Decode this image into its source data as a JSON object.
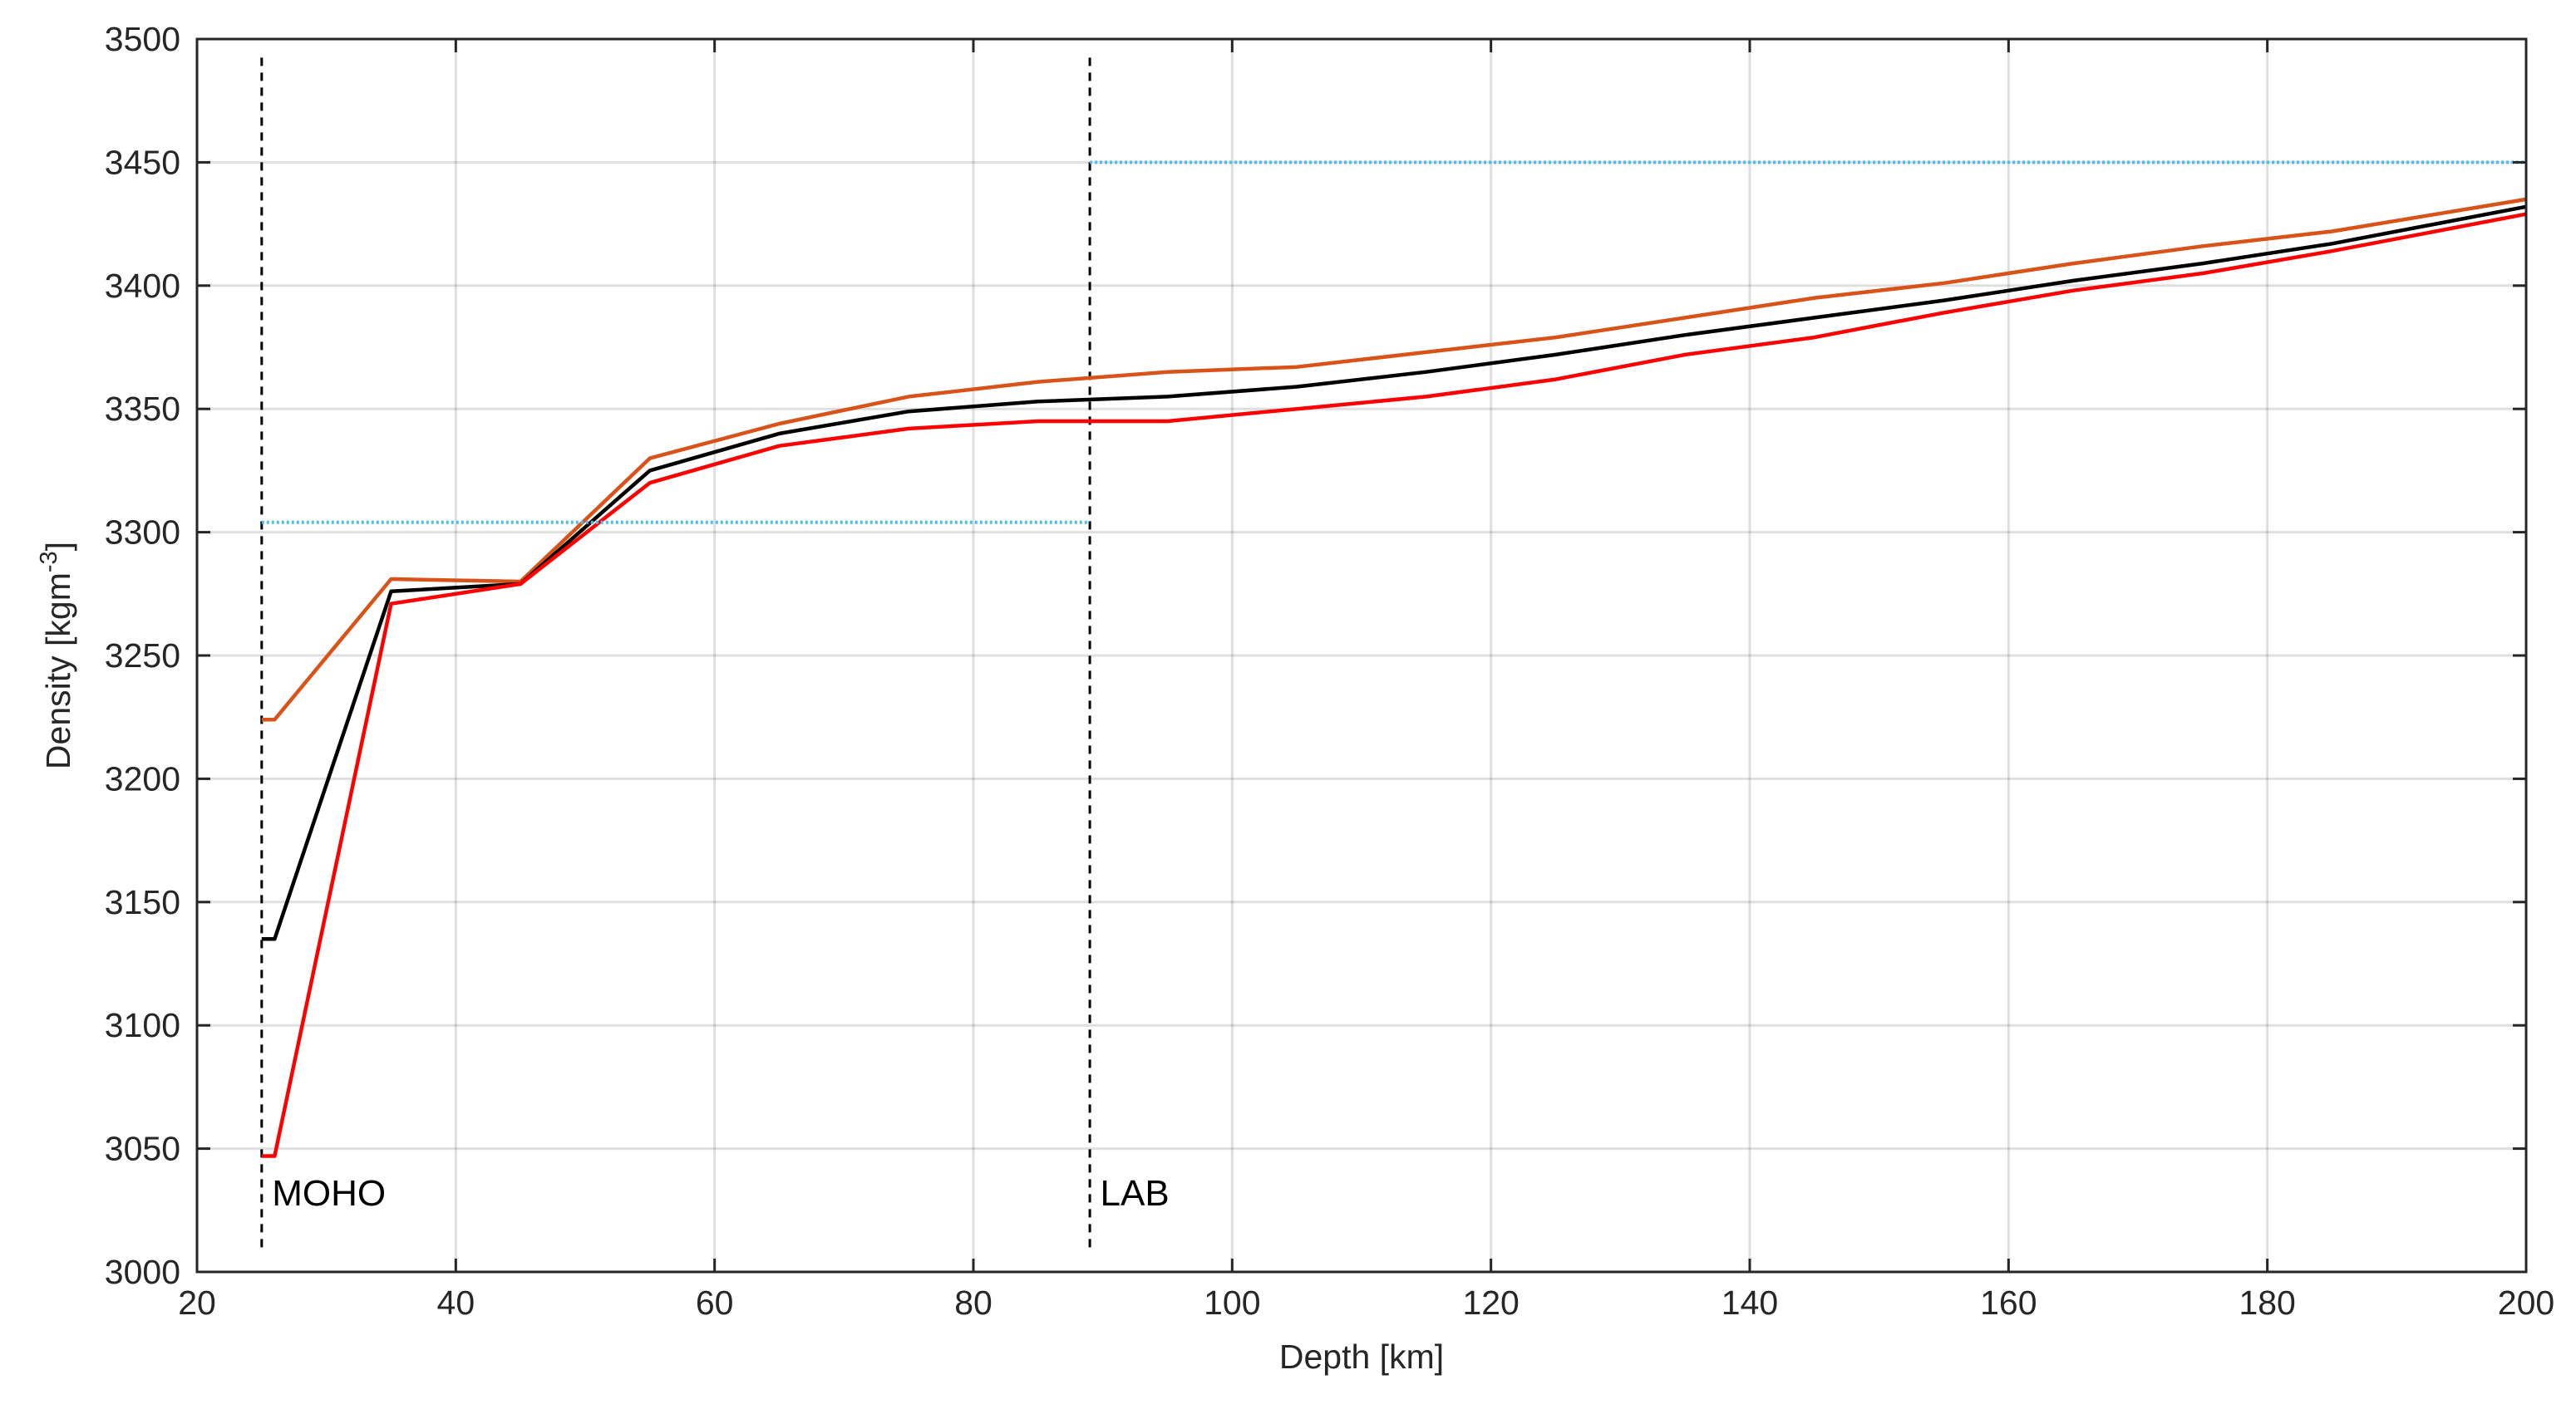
{
  "chart_data": {
    "type": "line",
    "xlabel": "Depth [km]",
    "ylabel_main": "Density [kgm",
    "ylabel_sup": "-3",
    "ylabel_tail": "]",
    "xlim": [
      20,
      200
    ],
    "ylim": [
      3000,
      3500
    ],
    "xticks": [
      20,
      40,
      60,
      80,
      100,
      120,
      140,
      160,
      180,
      200
    ],
    "yticks": [
      3000,
      3050,
      3100,
      3150,
      3200,
      3250,
      3300,
      3350,
      3400,
      3450,
      3500
    ],
    "grid": true,
    "series": [
      {
        "color": "#D95319",
        "style": "solid",
        "x": [
          25,
          26,
          35,
          45,
          55,
          65,
          75,
          85,
          95,
          105,
          115,
          125,
          135,
          145,
          155,
          165,
          175,
          185,
          200
        ],
        "y": [
          3224,
          3224,
          3281,
          3280,
          3330,
          3344,
          3355,
          3361,
          3365,
          3367,
          3373,
          3379,
          3387,
          3395,
          3401,
          3409,
          3416,
          3422,
          3435
        ]
      },
      {
        "color": "#000000",
        "style": "solid",
        "x": [
          25,
          26,
          35,
          45,
          55,
          65,
          75,
          85,
          95,
          105,
          115,
          125,
          135,
          145,
          155,
          165,
          175,
          185,
          200
        ],
        "y": [
          3135,
          3135,
          3276,
          3279,
          3325,
          3340,
          3349,
          3353,
          3355,
          3359,
          3365,
          3372,
          3380,
          3387,
          3394,
          3402,
          3409,
          3417,
          3432
        ]
      },
      {
        "color": "#FF0000",
        "style": "solid",
        "x": [
          25,
          26,
          35,
          45,
          55,
          65,
          75,
          85,
          95,
          105,
          115,
          125,
          135,
          145,
          155,
          165,
          175,
          185,
          200
        ],
        "y": [
          3047,
          3047,
          3271,
          3279,
          3320,
          3335,
          3342,
          3345,
          3345,
          3350,
          3355,
          3362,
          3372,
          3379,
          3389,
          3398,
          3405,
          3414,
          3429
        ]
      },
      {
        "color": "#4DBEEE",
        "style": "dotted",
        "x": [
          25,
          89
        ],
        "y": [
          3304,
          3304
        ]
      },
      {
        "color": "#4DBEEE",
        "style": "dotted",
        "x": [
          89,
          200
        ],
        "y": [
          3450,
          3450
        ]
      }
    ],
    "vlines": [
      {
        "x": 25,
        "y_from": 3010,
        "y_to": 3495,
        "color": "#000000",
        "style": "dashed"
      },
      {
        "x": 89,
        "y_from": 3010,
        "y_to": 3495,
        "color": "#000000",
        "style": "dashed"
      }
    ],
    "annotations": [
      {
        "text": "MOHO",
        "x": 25.8,
        "y": 3027
      },
      {
        "text": "LAB",
        "x": 89.8,
        "y": 3027
      }
    ]
  }
}
